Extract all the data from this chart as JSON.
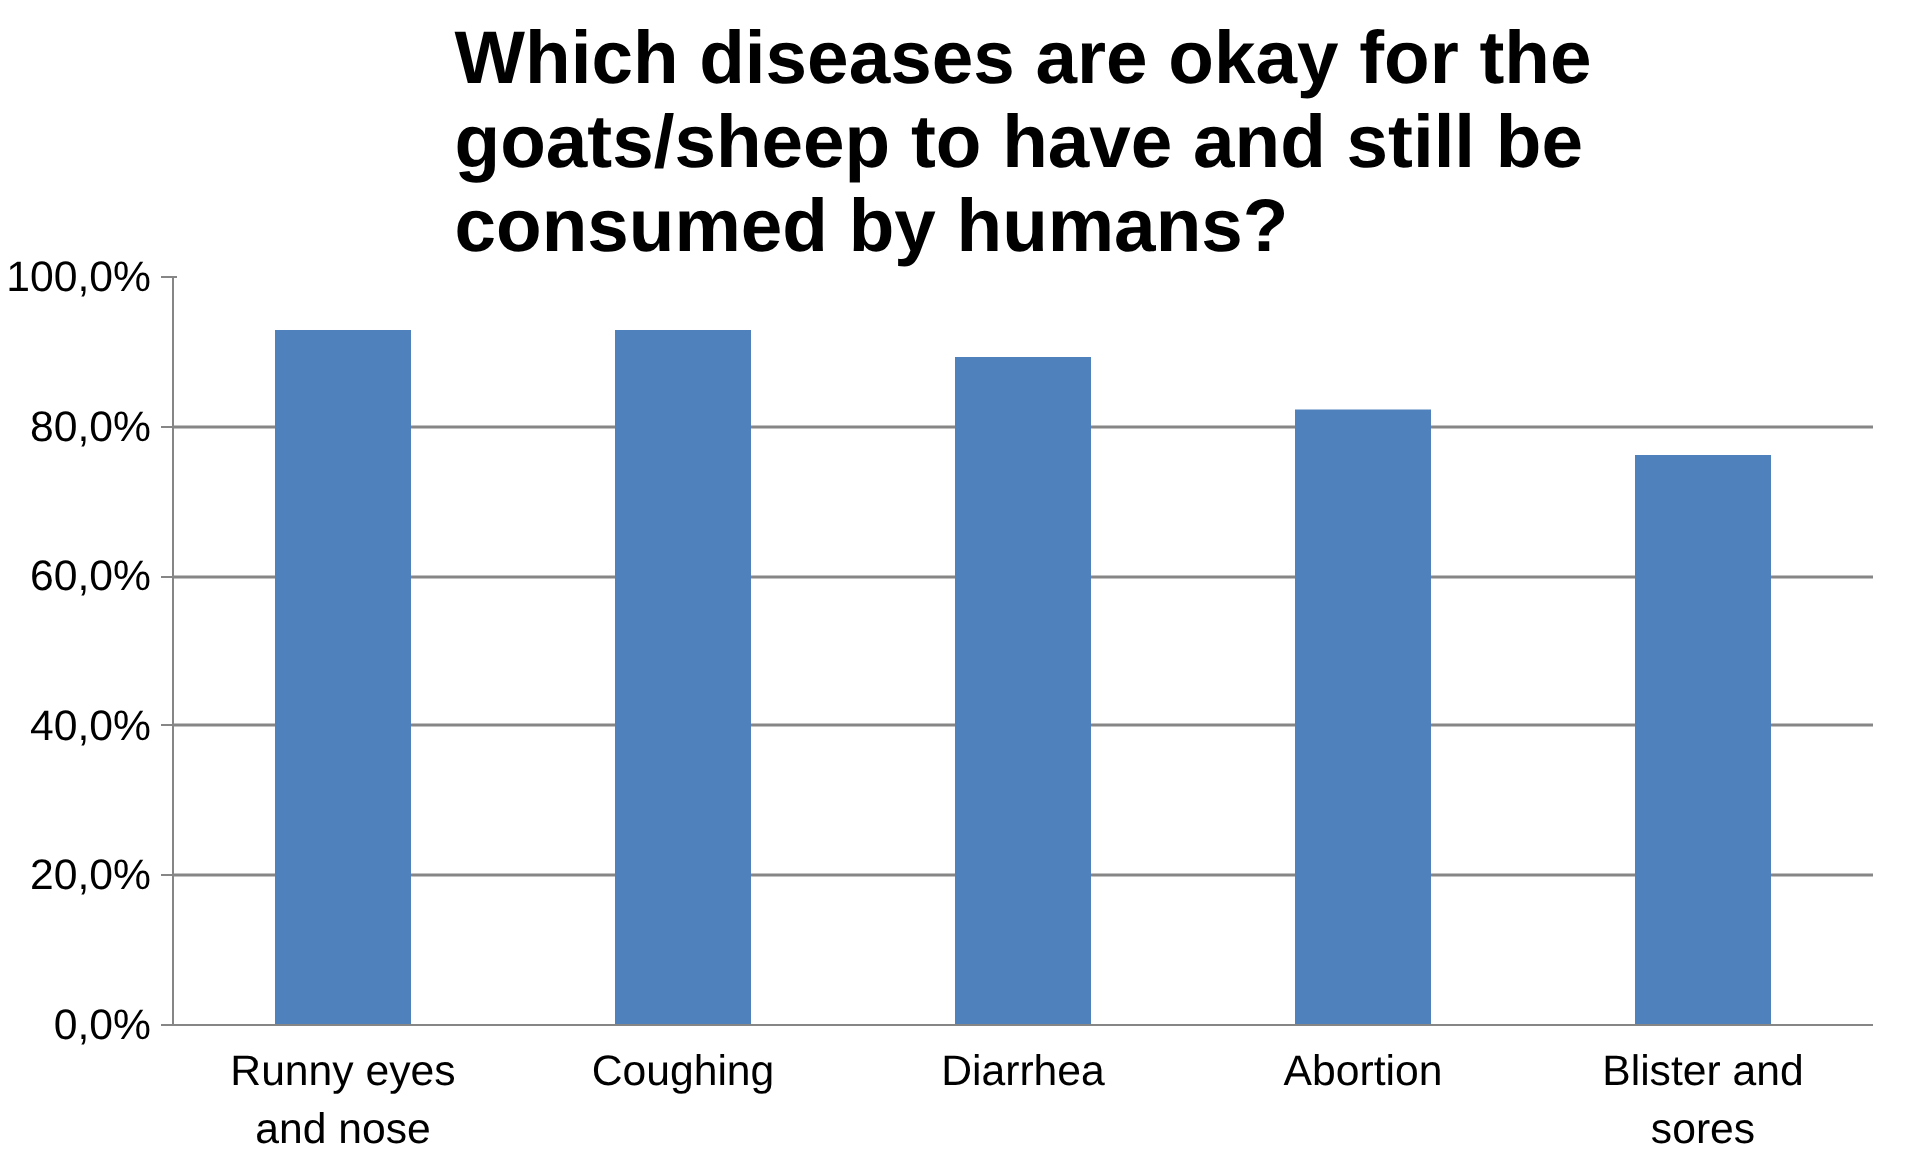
{
  "chart_data": {
    "type": "bar",
    "title": "Which diseases are okay for the goats/sheep to have and still be consumed by humans?",
    "categories": [
      "Runny eyes and nose",
      "Coughing",
      "Diarrhea",
      "Abortion",
      "Blister and sores"
    ],
    "values": [
      92.9,
      92.9,
      89.3,
      82.3,
      76.2
    ],
    "color": "#4f81bd",
    "ylim": [
      0,
      100
    ],
    "yticks": [
      {
        "value": 0,
        "label": "0,0%"
      },
      {
        "value": 20,
        "label": "20,0%"
      },
      {
        "value": 40,
        "label": "40,0%"
      },
      {
        "value": 60,
        "label": "60,0%"
      },
      {
        "value": 80,
        "label": "80,0%"
      },
      {
        "value": 100,
        "label": "100,0%"
      }
    ],
    "grid": "y"
  }
}
